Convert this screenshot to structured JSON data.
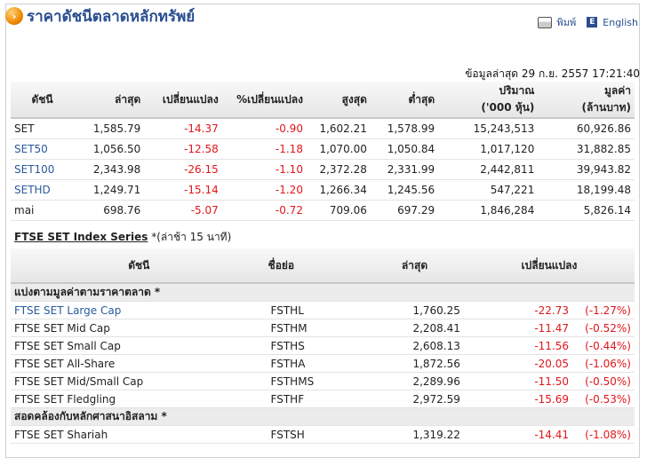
{
  "header": {
    "title": "ราคาดัชนีตลาดหลักทรัพย์",
    "print_label": "พิมพ์",
    "english_label": "English"
  },
  "updated": "ข้อมูลล่าสุด 29 ก.ย. 2557 17:21:40",
  "main_table": {
    "headers": [
      "ดัชนี",
      "ล่าสุด",
      "เปลี่ยนแปลง",
      "%เปลี่ยนแปลง",
      "สูงสุด",
      "ต่ำสุด",
      "ปริมาณ\n('000 หุ้น)",
      "มูลค่า\n(ล้านบาท)"
    ],
    "rows": [
      [
        "SET",
        "1,585.79",
        "-14.37",
        "-0.90",
        "1,602.21",
        "1,578.99",
        "15,243,513",
        "60,926.86"
      ],
      [
        "SET50",
        "1,056.50",
        "-12.58",
        "-1.18",
        "1,070.00",
        "1,050.84",
        "1,017,120",
        "31,882.85"
      ],
      [
        "SET100",
        "2,343.98",
        "-26.15",
        "-1.10",
        "2,372.28",
        "2,331.99",
        "2,442,811",
        "39,943.82"
      ],
      [
        "SETHD",
        "1,249.71",
        "-15.14",
        "-1.20",
        "1,266.34",
        "1,245.56",
        "547,221",
        "18,199.48"
      ],
      [
        "mai",
        "698.76",
        "-5.07",
        "-0.72",
        "709.06",
        "697.29",
        "1,846,284",
        "5,826.14"
      ]
    ]
  },
  "ftse": {
    "caption_bold": "FTSE SET Index Series",
    "caption_note": "*(ล่าช้า 15 นาที)",
    "headers": [
      "ดัชนี",
      "ชื่อย่อ",
      "ล่าสุด",
      "เปลี่ยนแปลง"
    ],
    "group1": "แบ่งตามมูลค่าตามราคาตลาด *",
    "rows1": [
      [
        "FTSE SET Large Cap",
        "FSTHL",
        "1,760.25",
        "-22.73",
        "(-1.27%)"
      ],
      [
        "FTSE SET Mid Cap",
        "FSTHM",
        "2,208.41",
        "-11.47",
        "(-0.52%)"
      ],
      [
        "FTSE SET Small Cap",
        "FSTHS",
        "2,608.13",
        "-11.56",
        "(-0.44%)"
      ],
      [
        "FTSE SET All-Share",
        "FSTHA",
        "1,872.56",
        "-20.05",
        "(-1.06%)"
      ],
      [
        "FTSE SET Mid/Small Cap",
        "FSTHMS",
        "2,289.96",
        "-11.50",
        "(-0.50%)"
      ],
      [
        "FTSE SET Fledgling",
        "FSTHF",
        "2,972.59",
        "-15.69",
        "(-0.53%)"
      ]
    ],
    "group2": "สอดคล้องกับหลักศาสนาอิสลาม *",
    "rows2": [
      [
        "FTSE SET Shariah",
        "FSTSH",
        "1,319.22",
        "-14.41",
        "(-1.08%)"
      ]
    ]
  }
}
